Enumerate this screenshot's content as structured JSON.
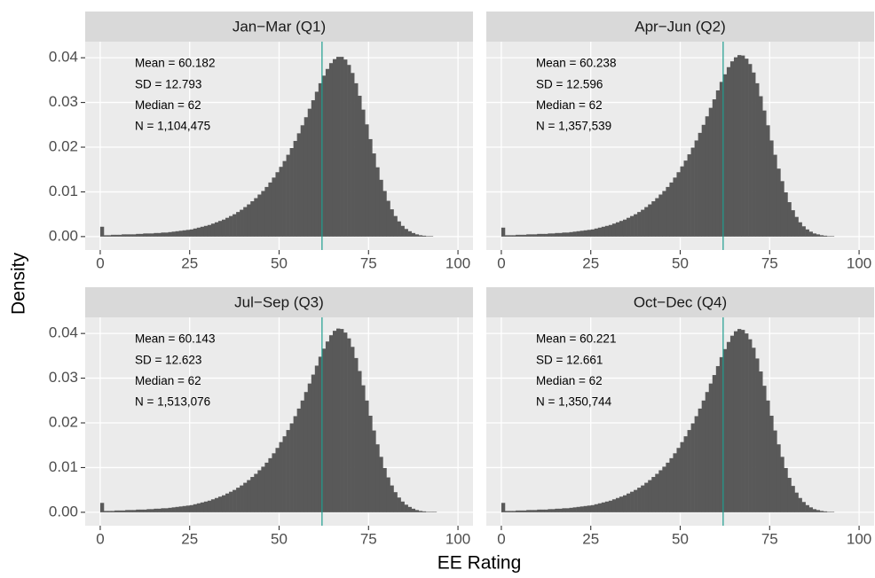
{
  "chart_data": {
    "type": "histogram",
    "xlabel": "EE Rating",
    "ylabel": "Density",
    "xlim": [
      -4.2,
      104.2
    ],
    "ylim": [
      -0.003,
      0.0436
    ],
    "xticks": [
      0,
      25,
      50,
      75,
      100
    ],
    "yticks": [
      {
        "value": 0,
        "label": "0.00"
      },
      {
        "value": 0.01,
        "label": "0.01"
      },
      {
        "value": 0.02,
        "label": "0.02"
      },
      {
        "value": 0.03,
        "label": "0.03"
      },
      {
        "value": 0.04,
        "label": "0.04"
      }
    ],
    "grid": true,
    "color": "#595959",
    "line_color": "#1f9e8f",
    "bins": [
      0,
      1,
      2,
      3,
      4,
      5,
      6,
      7,
      8,
      9,
      10,
      11,
      12,
      13,
      14,
      15,
      16,
      17,
      18,
      19,
      20,
      21,
      22,
      23,
      24,
      25,
      26,
      27,
      28,
      29,
      30,
      31,
      32,
      33,
      34,
      35,
      36,
      37,
      38,
      39,
      40,
      41,
      42,
      43,
      44,
      45,
      46,
      47,
      48,
      49,
      50,
      51,
      52,
      53,
      54,
      55,
      56,
      57,
      58,
      59,
      60,
      61,
      62,
      63,
      64,
      65,
      66,
      67,
      68,
      69,
      70,
      71,
      72,
      73,
      74,
      75,
      76,
      77,
      78,
      79,
      80,
      81,
      82,
      83,
      84,
      85,
      86,
      87,
      88,
      89,
      90,
      91,
      92,
      93,
      94,
      95,
      96,
      97,
      98,
      99,
      100
    ],
    "panels": [
      {
        "title": "Jan−Mar (Q1)",
        "annotations": [
          "Mean = 60.182",
          "SD = 12.793",
          "Median = 62",
          "N = 1,104,475"
        ],
        "median_line": 62,
        "values": [
          0.0022,
          0.0003,
          0.0003,
          0.0004,
          0.0004,
          0.0004,
          0.0005,
          0.0005,
          0.0005,
          0.0005,
          0.0006,
          0.0006,
          0.0007,
          0.0007,
          0.0007,
          0.0008,
          0.0008,
          0.0009,
          0.0009,
          0.001,
          0.0011,
          0.0012,
          0.0013,
          0.0014,
          0.0015,
          0.0016,
          0.0018,
          0.002,
          0.0022,
          0.0024,
          0.0026,
          0.0029,
          0.0032,
          0.0035,
          0.0038,
          0.0042,
          0.0046,
          0.005,
          0.0055,
          0.006,
          0.0066,
          0.0072,
          0.0079,
          0.0086,
          0.0094,
          0.0102,
          0.0111,
          0.0121,
          0.0132,
          0.0144,
          0.0156,
          0.0169,
          0.0183,
          0.0198,
          0.0214,
          0.0231,
          0.0249,
          0.0267,
          0.0286,
          0.0305,
          0.0324,
          0.0343,
          0.036,
          0.0375,
          0.0388,
          0.0397,
          0.0402,
          0.0402,
          0.0396,
          0.0384,
          0.0366,
          0.0343,
          0.0315,
          0.0284,
          0.0251,
          0.0218,
          0.0186,
          0.0155,
          0.0127,
          0.0102,
          0.008,
          0.0061,
          0.0046,
          0.0034,
          0.0024,
          0.0017,
          0.0012,
          0.0008,
          0.0005,
          0.0003,
          0.0002,
          0.0001,
          0.0001,
          0,
          0,
          0,
          0,
          0,
          0,
          0
        ]
      },
      {
        "title": "Apr−Jun (Q2)",
        "annotations": [
          "Mean = 60.238",
          "SD = 12.596",
          "Median = 62",
          "N = 1,357,539"
        ],
        "median_line": 62,
        "values": [
          0.002,
          0.0003,
          0.0003,
          0.0003,
          0.0004,
          0.0004,
          0.0004,
          0.0005,
          0.0005,
          0.0005,
          0.0006,
          0.0006,
          0.0006,
          0.0007,
          0.0007,
          0.0008,
          0.0008,
          0.0009,
          0.0009,
          0.001,
          0.0011,
          0.0012,
          0.0013,
          0.0014,
          0.0015,
          0.0016,
          0.0018,
          0.002,
          0.0022,
          0.0024,
          0.0026,
          0.0029,
          0.0032,
          0.0035,
          0.0038,
          0.0042,
          0.0046,
          0.005,
          0.0055,
          0.006,
          0.0066,
          0.0072,
          0.0079,
          0.0086,
          0.0094,
          0.0102,
          0.0111,
          0.0121,
          0.0132,
          0.0144,
          0.0157,
          0.017,
          0.0184,
          0.0199,
          0.0215,
          0.0232,
          0.025,
          0.0269,
          0.0288,
          0.0307,
          0.0327,
          0.0346,
          0.0363,
          0.0379,
          0.0392,
          0.0401,
          0.0406,
          0.0405,
          0.0398,
          0.0386,
          0.0367,
          0.0343,
          0.0314,
          0.0282,
          0.0249,
          0.0215,
          0.0183,
          0.0152,
          0.0124,
          0.0099,
          0.0077,
          0.0059,
          0.0044,
          0.0032,
          0.0023,
          0.0016,
          0.0011,
          0.0007,
          0.0005,
          0.0003,
          0.0002,
          0.0001,
          0.0001,
          0,
          0,
          0,
          0,
          0,
          0,
          0
        ]
      },
      {
        "title": "Jul−Sep (Q3)",
        "annotations": [
          "Mean = 60.143",
          "SD = 12.623",
          "Median = 62",
          "N = 1,513,076"
        ],
        "median_line": 62,
        "values": [
          0.0021,
          0.0003,
          0.0003,
          0.0003,
          0.0004,
          0.0004,
          0.0004,
          0.0005,
          0.0005,
          0.0005,
          0.0006,
          0.0006,
          0.0006,
          0.0007,
          0.0007,
          0.0008,
          0.0008,
          0.0009,
          0.0009,
          0.001,
          0.0011,
          0.0012,
          0.0013,
          0.0014,
          0.0015,
          0.0016,
          0.0018,
          0.002,
          0.0022,
          0.0024,
          0.0026,
          0.0029,
          0.0032,
          0.0035,
          0.0038,
          0.0042,
          0.0046,
          0.005,
          0.0055,
          0.006,
          0.0066,
          0.0072,
          0.0079,
          0.0086,
          0.0094,
          0.0102,
          0.0111,
          0.0121,
          0.0132,
          0.0144,
          0.0157,
          0.017,
          0.0184,
          0.0199,
          0.0215,
          0.0232,
          0.025,
          0.0269,
          0.0288,
          0.0308,
          0.0328,
          0.0348,
          0.0366,
          0.0382,
          0.0396,
          0.0406,
          0.0411,
          0.041,
          0.0402,
          0.0389,
          0.037,
          0.0345,
          0.0316,
          0.0284,
          0.025,
          0.0216,
          0.0183,
          0.0152,
          0.0124,
          0.0099,
          0.0078,
          0.006,
          0.0045,
          0.0033,
          0.0024,
          0.0017,
          0.0012,
          0.0008,
          0.0005,
          0.0003,
          0.0002,
          0.0001,
          0.0001,
          0.0001,
          0,
          0,
          0,
          0,
          0,
          0
        ]
      },
      {
        "title": "Oct−Dec (Q4)",
        "annotations": [
          "Mean = 60.221",
          "SD = 12.661",
          "Median = 62",
          "N = 1,350,744"
        ],
        "median_line": 62,
        "values": [
          0.0021,
          0.0003,
          0.0003,
          0.0003,
          0.0004,
          0.0004,
          0.0004,
          0.0005,
          0.0005,
          0.0005,
          0.0006,
          0.0006,
          0.0006,
          0.0007,
          0.0007,
          0.0008,
          0.0008,
          0.0009,
          0.0009,
          0.001,
          0.0011,
          0.0012,
          0.0013,
          0.0014,
          0.0015,
          0.0016,
          0.0018,
          0.002,
          0.0022,
          0.0024,
          0.0026,
          0.0029,
          0.0032,
          0.0035,
          0.0038,
          0.0042,
          0.0046,
          0.005,
          0.0055,
          0.006,
          0.0066,
          0.0072,
          0.0079,
          0.0086,
          0.0094,
          0.0102,
          0.0111,
          0.0121,
          0.0132,
          0.0144,
          0.0157,
          0.017,
          0.0184,
          0.0199,
          0.0215,
          0.0232,
          0.025,
          0.0269,
          0.0288,
          0.0307,
          0.0327,
          0.0347,
          0.0365,
          0.0381,
          0.0395,
          0.0405,
          0.041,
          0.0408,
          0.04,
          0.0387,
          0.0368,
          0.0344,
          0.0315,
          0.0283,
          0.025,
          0.0216,
          0.0183,
          0.0152,
          0.0124,
          0.0099,
          0.0077,
          0.0059,
          0.0044,
          0.0032,
          0.0023,
          0.0016,
          0.0011,
          0.0007,
          0.0005,
          0.0003,
          0.0002,
          0.0001,
          0.0001,
          0,
          0,
          0,
          0,
          0,
          0,
          0
        ]
      }
    ]
  }
}
